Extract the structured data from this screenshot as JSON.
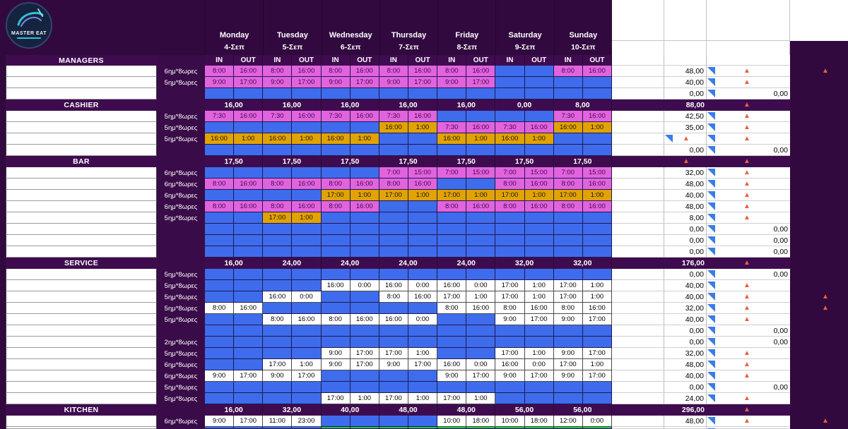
{
  "app": {
    "logo_title": "MASTER EAT"
  },
  "colors": {
    "background_purple": "#31093f",
    "section_band_purple": "#3e0c4e",
    "empty_shift_blue": "#3e6cec",
    "morning_shift_pink": "#e263de",
    "night_shift_orange": "#e0a303",
    "day_shift_white": "#ffffff",
    "green_row": "#25c946",
    "flag_blue": "#3a7ce8",
    "warning_orange": "#ea5f3e"
  },
  "week": {
    "in_label": "IN",
    "out_label": "OUT",
    "days": [
      {
        "name": "Monday",
        "date": "4-Σεπ"
      },
      {
        "name": "Tuesday",
        "date": "5-Σεπ"
      },
      {
        "name": "Wednesday",
        "date": "6-Σεπ"
      },
      {
        "name": "Thursday",
        "date": "7-Σεπ"
      },
      {
        "name": "Friday",
        "date": "8-Σεπ"
      },
      {
        "name": "Saturday",
        "date": "9-Σεπ"
      },
      {
        "name": "Sunday",
        "date": "10-Σεπ"
      }
    ]
  },
  "sections": [
    {
      "title": "MANAGERS",
      "header_style": "inout",
      "rows": [
        {
          "label": "6ημ*8ωρες",
          "shifts": [
            [
              "8:00",
              "16:00",
              "pink"
            ],
            [
              "8:00",
              "16:00",
              "pink"
            ],
            [
              "8:00",
              "16:00",
              "pink"
            ],
            [
              "8:00",
              "16:00",
              "pink"
            ],
            [
              "8:00",
              "16:00",
              "pink"
            ],
            null,
            [
              "8:00",
              "16:00",
              "pink"
            ]
          ],
          "total": "48,00",
          "flag": true,
          "warn": true,
          "far_warn": true
        },
        {
          "label": "5ημ*8ωρες",
          "shifts": [
            [
              "9:00",
              "17:00",
              "pink"
            ],
            [
              "9:00",
              "17:00",
              "pink"
            ],
            [
              "9:00",
              "17:00",
              "pink"
            ],
            [
              "9:00",
              "17:00",
              "pink"
            ],
            [
              "9:00",
              "17:00",
              "pink"
            ],
            null,
            null
          ],
          "total": "40,00",
          "flag": true,
          "warn": true
        },
        {
          "label": "",
          "shifts": [
            null,
            null,
            null,
            null,
            null,
            null,
            null
          ],
          "total": "0,00",
          "flag": true,
          "right_value": "0,00"
        }
      ]
    },
    {
      "title": "CASHIER",
      "day_totals": [
        "16,00",
        "16,00",
        "16,00",
        "16,00",
        "16,00",
        "0,00",
        "8,00"
      ],
      "total": "88,00",
      "warn": true,
      "rows": [
        {
          "label": "5ημ*8ωρες",
          "shifts": [
            [
              "7:30",
              "16:00",
              "pink"
            ],
            [
              "7:30",
              "16:00",
              "pink"
            ],
            [
              "7:30",
              "16:00",
              "pink"
            ],
            [
              "7:30",
              "16:00",
              "pink"
            ],
            null,
            null,
            [
              "7:30",
              "16:00",
              "pink"
            ]
          ],
          "total": "42,50",
          "flag": true,
          "warn": true
        },
        {
          "label": "5ημ*8ωρες",
          "shifts": [
            null,
            null,
            null,
            [
              "16:00",
              "1:00",
              "orange"
            ],
            [
              "7:30",
              "16:00",
              "pink"
            ],
            [
              "7:30",
              "16:00",
              "pink"
            ],
            [
              "16:00",
              "1:00",
              "orange"
            ]
          ],
          "total": "35,00",
          "flag": true,
          "warn": true
        },
        {
          "label": "5ημ*8ωρες",
          "shifts": [
            [
              "16:00",
              "1:00",
              "orange"
            ],
            [
              "16:00",
              "1:00",
              "orange"
            ],
            [
              "16:00",
              "1:00",
              "orange"
            ],
            null,
            [
              "16:00",
              "1:00",
              "orange"
            ],
            [
              "16:00",
              "1:00",
              "orange"
            ],
            null
          ],
          "total": "",
          "total_flag": true,
          "total_warn": true,
          "flag": true,
          "warn": true
        },
        {
          "label": "",
          "shifts": [
            null,
            null,
            null,
            null,
            null,
            null,
            null
          ],
          "total": "0,00",
          "flag": true,
          "right_value": "0,00"
        }
      ]
    },
    {
      "title": "BAR",
      "day_totals": [
        "17,50",
        "17,50",
        "17,50",
        "17,50",
        "17,50",
        "17,50",
        "17,50"
      ],
      "total": "",
      "total_warn": true,
      "warn": true,
      "rows": [
        {
          "label": "6ημ*8ωρες",
          "shifts": [
            null,
            null,
            null,
            [
              "7:00",
              "15:00",
              "pink"
            ],
            [
              "7:00",
              "15:00",
              "pink"
            ],
            [
              "7:00",
              "15:00",
              "pink"
            ],
            [
              "7:00",
              "15:00",
              "pink"
            ]
          ],
          "total": "32,00",
          "flag": true,
          "warn": true
        },
        {
          "label": "6ημ*8ωρες",
          "shifts": [
            [
              "8:00",
              "16:00",
              "pink"
            ],
            [
              "8:00",
              "16:00",
              "pink"
            ],
            [
              "8:00",
              "16:00",
              "pink"
            ],
            [
              "8:00",
              "16:00",
              "pink"
            ],
            null,
            [
              "8:00",
              "16:00",
              "pink"
            ],
            [
              "8:00",
              "16:00",
              "pink"
            ]
          ],
          "total": "48,00",
          "flag": true,
          "warn": true
        },
        {
          "label": "6ημ*8ωρες",
          "shifts": [
            null,
            null,
            [
              "17:00",
              "1:00",
              "orange"
            ],
            [
              "17:00",
              "1:00",
              "orange"
            ],
            [
              "17:00",
              "1:00",
              "orange"
            ],
            [
              "17:00",
              "1:00",
              "orange"
            ],
            [
              "17:00",
              "1:00",
              "orange"
            ]
          ],
          "total": "40,00",
          "flag": true,
          "warn": true
        },
        {
          "label": "6ημ*8ωρες",
          "shifts": [
            [
              "8:00",
              "16:00",
              "pink"
            ],
            [
              "8:00",
              "16:00",
              "pink"
            ],
            [
              "8:00",
              "16:00",
              "pink"
            ],
            null,
            [
              "8:00",
              "16:00",
              "pink"
            ],
            [
              "8:00",
              "16:00",
              "pink"
            ],
            [
              "8:00",
              "16:00",
              "pink"
            ]
          ],
          "total": "48,00",
          "flag": true,
          "warn": true
        },
        {
          "label": "5ημ*8ωρες",
          "shifts": [
            null,
            [
              "17:00",
              "1:00",
              "orange"
            ],
            null,
            null,
            null,
            null,
            null
          ],
          "total": "8,00",
          "flag": true,
          "warn": true
        },
        {
          "label": "",
          "shifts": [
            null,
            null,
            null,
            null,
            null,
            null,
            null
          ],
          "total": "0,00",
          "flag": true,
          "right_value": "0,00"
        },
        {
          "label": "",
          "shifts": [
            null,
            null,
            null,
            null,
            null,
            null,
            null
          ],
          "total": "0,00",
          "flag": true,
          "right_value": "0,00"
        },
        {
          "label": "",
          "shifts": [
            null,
            null,
            null,
            null,
            null,
            null,
            null
          ],
          "total": "0,00",
          "flag": true,
          "right_value": "0,00"
        }
      ]
    },
    {
      "title": "SERVICE",
      "day_totals": [
        "16,00",
        "24,00",
        "24,00",
        "24,00",
        "24,00",
        "32,00",
        "32,00"
      ],
      "total": "176,00",
      "warn": true,
      "rows": [
        {
          "label": "5ημ*8ωρες",
          "shifts": [
            null,
            null,
            null,
            null,
            null,
            null,
            null
          ],
          "total": "0,00",
          "flag": true,
          "right_value": "0,00"
        },
        {
          "label": "5ημ*8ωρες",
          "shifts": [
            null,
            null,
            [
              "16:00",
              "0:00",
              "white"
            ],
            [
              "16:00",
              "0:00",
              "white"
            ],
            [
              "16:00",
              "0:00",
              "white"
            ],
            [
              "17:00",
              "1:00",
              "white"
            ],
            [
              "17:00",
              "1:00",
              "white"
            ]
          ],
          "total": "40,00",
          "flag": true,
          "warn": true
        },
        {
          "label": "5ημ*8ωρες",
          "shifts": [
            null,
            [
              "16:00",
              "0:00",
              "white"
            ],
            null,
            [
              "8:00",
              "16:00",
              "white"
            ],
            [
              "17:00",
              "1:00",
              "white"
            ],
            [
              "17:00",
              "1:00",
              "white"
            ],
            [
              "17:00",
              "1:00",
              "white"
            ]
          ],
          "total": "40,00",
          "flag": true,
          "warn": true,
          "far_warn": true
        },
        {
          "label": "5ημ*8ωρες",
          "shifts": [
            [
              "8:00",
              "16:00",
              "white"
            ],
            null,
            null,
            null,
            [
              "8:00",
              "16:00",
              "white"
            ],
            [
              "8:00",
              "16:00",
              "white"
            ],
            [
              "8:00",
              "16:00",
              "white"
            ]
          ],
          "total": "32,00",
          "flag": true,
          "warn": true,
          "far_warn": true
        },
        {
          "label": "5ημ*8ωρες",
          "shifts": [
            null,
            [
              "8:00",
              "16:00",
              "white"
            ],
            [
              "8:00",
              "16:00",
              "white"
            ],
            [
              "16:00",
              "0:00",
              "white"
            ],
            null,
            [
              "9:00",
              "17:00",
              "white"
            ],
            [
              "9:00",
              "17:00",
              "white"
            ]
          ],
          "total": "40,00",
          "flag": true,
          "warn": true
        },
        {
          "label": "",
          "shifts": [
            null,
            null,
            null,
            null,
            null,
            null,
            null
          ],
          "total": "0,00",
          "flag": true,
          "right_value": "0,00"
        },
        {
          "label": "2ημ*8ωρες",
          "shifts": [
            null,
            null,
            null,
            null,
            null,
            null,
            null
          ],
          "total": "0,00",
          "flag": true,
          "right_value": "0,00"
        },
        {
          "label": "5ημ*8ωρες",
          "shifts": [
            null,
            null,
            [
              "9:00",
              "17:00",
              "white"
            ],
            [
              "17:00",
              "1:00",
              "white"
            ],
            null,
            [
              "17:00",
              "1:00",
              "white"
            ],
            [
              "9:00",
              "17:00",
              "white"
            ]
          ],
          "total": "32,00",
          "flag": true,
          "warn": true
        },
        {
          "label": "6ημ*8ωρες",
          "shifts": [
            null,
            [
              "17:00",
              "1:00",
              "white"
            ],
            [
              "9:00",
              "17:00",
              "white"
            ],
            [
              "9:00",
              "17:00",
              "white"
            ],
            [
              "16:00",
              "0:00",
              "white"
            ],
            [
              "16:00",
              "0:00",
              "white"
            ],
            [
              "17:00",
              "1:00",
              "white"
            ]
          ],
          "total": "48,00",
          "flag": true,
          "warn": true
        },
        {
          "label": "6ημ*8ωρες",
          "shifts": [
            [
              "9:00",
              "17:00",
              "white"
            ],
            [
              "9:00",
              "17:00",
              "white"
            ],
            null,
            null,
            [
              "9:00",
              "17:00",
              "white"
            ],
            [
              "9:00",
              "17:00",
              "white"
            ],
            [
              "9:00",
              "17:00",
              "white"
            ]
          ],
          "total": "40,00",
          "flag": true,
          "warn": true
        },
        {
          "label": "5ημ*8ωρες",
          "shifts": [
            null,
            null,
            null,
            null,
            null,
            null,
            null
          ],
          "total": "0,00",
          "flag": true,
          "right_value": "0,00"
        },
        {
          "label": "5ημ*8ωρες",
          "shifts": [
            null,
            null,
            [
              "17:00",
              "1:00",
              "white"
            ],
            [
              "17:00",
              "1:00",
              "white"
            ],
            [
              "17:00",
              "1:00",
              "white"
            ],
            null,
            null
          ],
          "total": "24,00",
          "flag": true,
          "warn": true
        }
      ]
    },
    {
      "title": "KITCHEN",
      "day_totals": [
        "16,00",
        "32,00",
        "40,00",
        "48,00",
        "48,00",
        "56,00",
        "56,00"
      ],
      "total": "296,00",
      "warn": true,
      "rows": [
        {
          "label": "6ημ*8ωρες",
          "shifts": [
            [
              "9:00",
              "17:00",
              "white"
            ],
            [
              "11:00",
              "23:00",
              "white"
            ],
            null,
            null,
            [
              "10:00",
              "18:00",
              "white"
            ],
            [
              "10:00",
              "18:00",
              "white"
            ],
            [
              "12:00",
              "0:00",
              "white"
            ]
          ],
          "total": "48,00",
          "flag": true,
          "warn": true,
          "far_warn": true
        },
        {
          "label": "",
          "partial_green_from_day": 2,
          "flag": true
        }
      ]
    }
  ]
}
